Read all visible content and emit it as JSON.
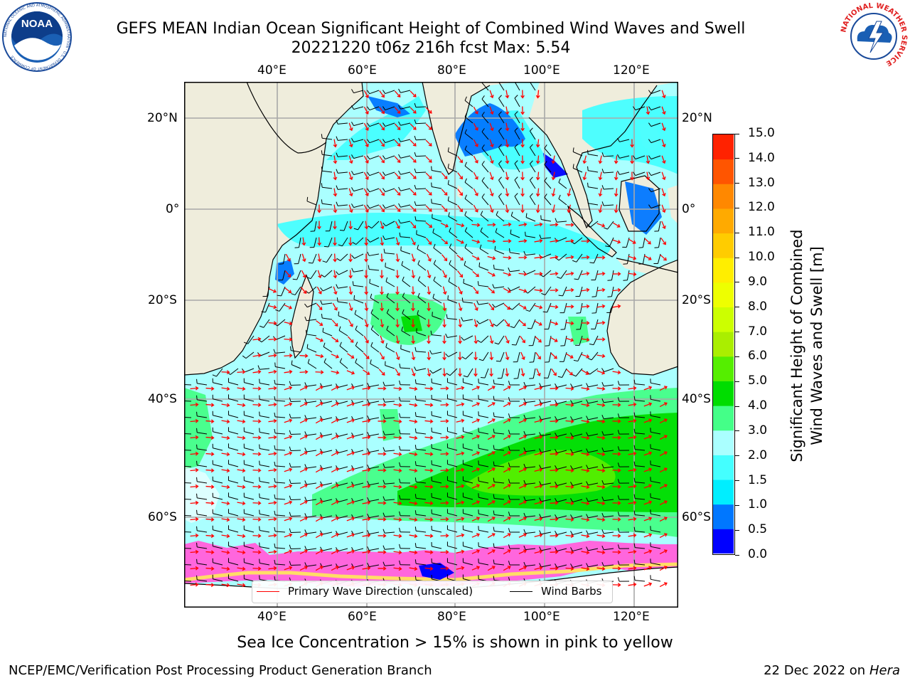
{
  "header": {
    "title_line1": "GEFS MEAN Indian Ocean Significant Height of Combined Wind Waves and Swell",
    "title_line2": "20221220 t06z 216h fcst   Max: 5.54"
  },
  "logos": {
    "left": {
      "text": "NOAA",
      "ring_text": "NATIONAL OCEANIC AND ATMOSPHERIC ADMINISTRATION · U.S. DEPARTMENT OF COMMERCE",
      "color": "#1a4a9a"
    },
    "right": {
      "ring_text": "NATIONAL WEATHER SERVICE",
      "color": "#e02020"
    }
  },
  "map": {
    "lon_labels": [
      "40°E",
      "60°E",
      "80°E",
      "100°E",
      "120°E"
    ],
    "lat_labels": [
      "20°N",
      "0°",
      "20°S",
      "40°S",
      "60°S"
    ],
    "colors": {
      "land": "#efeddc",
      "ice": "#ffffff",
      "wave_arrow": "#ff0000",
      "wind_barb": "#000000"
    }
  },
  "legend": {
    "wave_direction": "Primary Wave Direction (unscaled)",
    "wind_barbs": "Wind Barbs"
  },
  "colorbar": {
    "title_line1": "Significant Height of Combined",
    "title_line2": "Wind Waves and Swell [m]",
    "ticks": [
      "0.0",
      "0.5",
      "1.0",
      "1.5",
      "2.0",
      "3.0",
      "4.0",
      "5.0",
      "6.0",
      "7.0",
      "8.0",
      "9.0",
      "10.0",
      "11.0",
      "12.0",
      "13.0",
      "14.0",
      "15.0"
    ],
    "colors": [
      "#0000ff",
      "#0077ff",
      "#00eeff",
      "#44ffff",
      "#aaffff",
      "#44ff88",
      "#00dd00",
      "#55ee00",
      "#aaee00",
      "#ccff00",
      "#eeff00",
      "#ffee00",
      "#ffcc00",
      "#ffaa00",
      "#ff8800",
      "#ff5500",
      "#ff2200"
    ]
  },
  "caption": "Sea Ice Concentration > 15% is shown in pink to yellow",
  "footer": {
    "left": "NCEP/EMC/Verification Post Processing Product Generation Branch",
    "date": "22 Dec 2022 on",
    "host": "Hera"
  }
}
